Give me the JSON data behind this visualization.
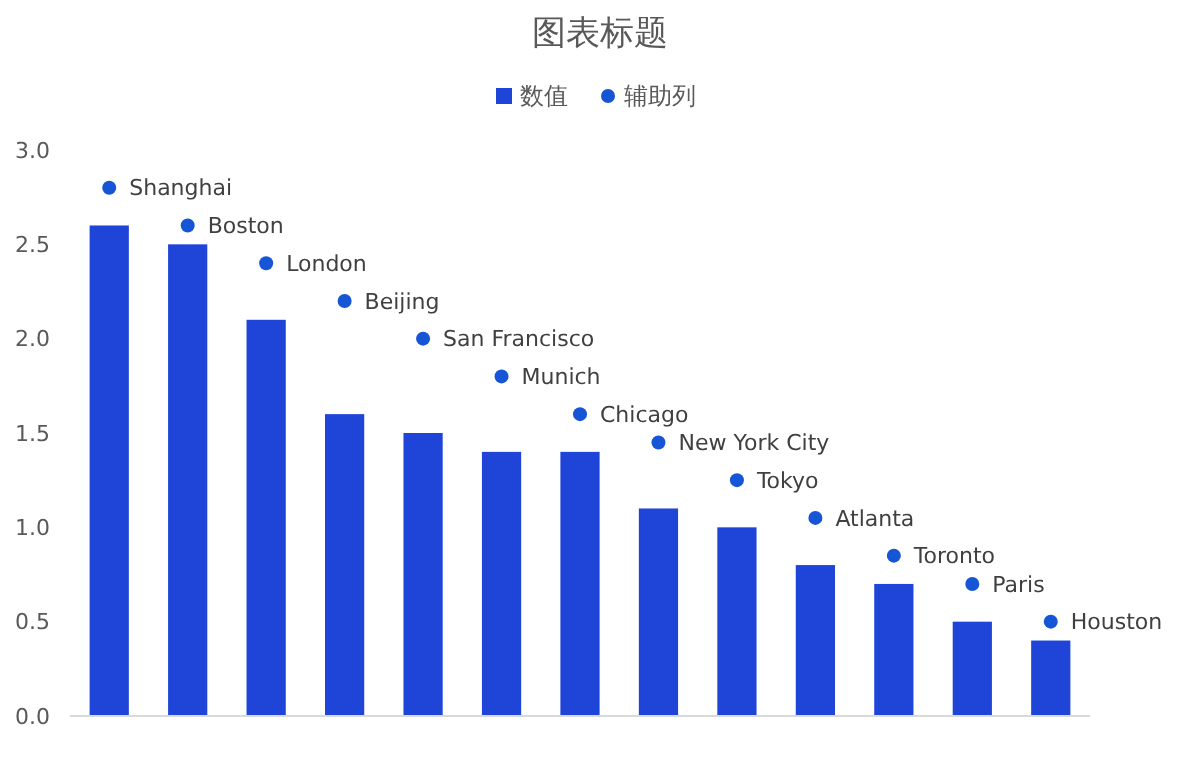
{
  "chart_data": {
    "type": "bar",
    "title": "图表标题",
    "categories": [
      null,
      null,
      null,
      null,
      null,
      null,
      null,
      null,
      null,
      null,
      null,
      null,
      null
    ],
    "series": [
      {
        "name": "数值",
        "color": "#1f45d8",
        "values": [
          2.6,
          2.5,
          2.1,
          1.6,
          1.5,
          1.4,
          1.4,
          1.1,
          1.0,
          0.8,
          0.7,
          0.5,
          0.4
        ]
      },
      {
        "name": "辅助列",
        "type": "scatter",
        "color": "#1555d6",
        "values": [
          2.8,
          2.6,
          2.4,
          2.2,
          2.0,
          1.8,
          1.6,
          1.45,
          1.25,
          1.05,
          0.85,
          0.7,
          0.5
        ],
        "value_labels": [
          "Shanghai",
          "Boston",
          "London",
          "Beijing",
          "San Francisco",
          "Munich",
          "Chicago",
          "New York City",
          "Tokyo",
          "Atlanta",
          "Toronto",
          "Paris",
          "Houston"
        ]
      }
    ],
    "ylim": [
      0,
      3
    ],
    "yticks": [
      {
        "value": 0,
        "label": "0.0"
      },
      {
        "value": 0.5,
        "label": "0.5"
      },
      {
        "value": 1,
        "label": "1.0"
      },
      {
        "value": 1.5,
        "label": "1.5"
      },
      {
        "value": 2,
        "label": "2.0"
      },
      {
        "value": 2.5,
        "label": "2.5"
      },
      {
        "value": 3,
        "label": "3.0"
      }
    ],
    "legend": "top",
    "marker": "circle",
    "grid": false
  }
}
